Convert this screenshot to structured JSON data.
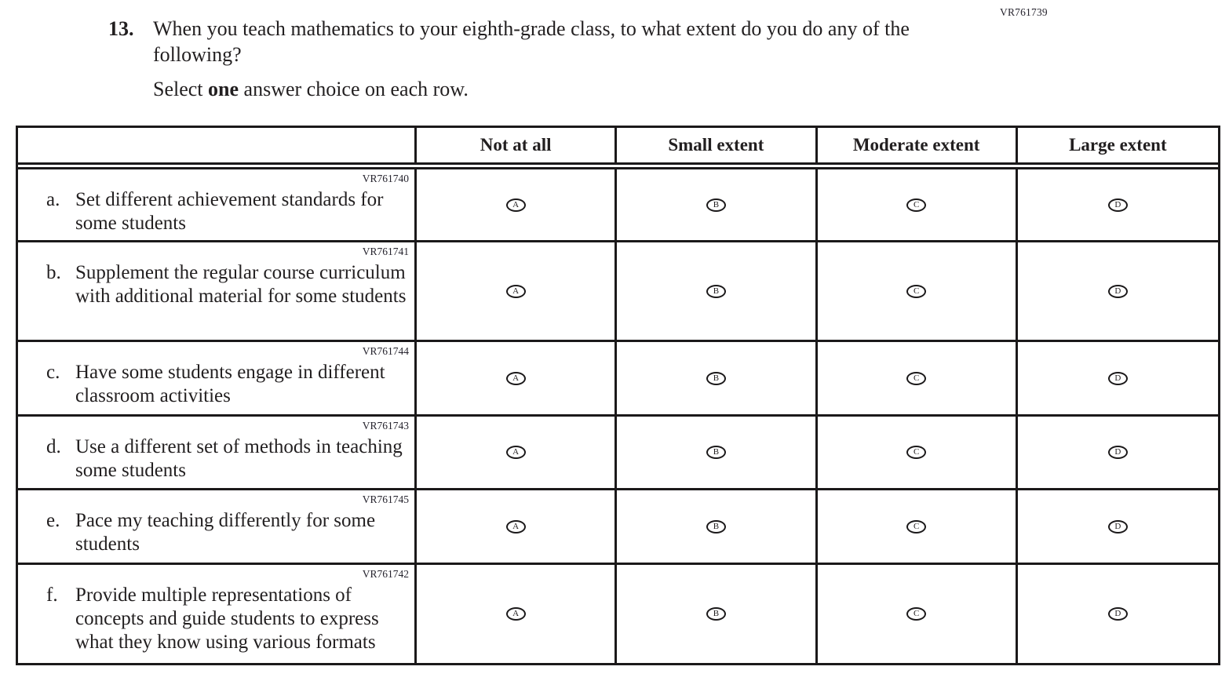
{
  "page": {
    "code_top_right": "VR761739",
    "question_number": "13.",
    "question_text": "When you teach mathematics to your eighth-grade class, to what extent do you do any of the following?",
    "instruction_prefix": "Select ",
    "instruction_bold": "one",
    "instruction_suffix": " answer choice on each row."
  },
  "table": {
    "columns": [
      "Not at all",
      "Small extent",
      "Moderate extent",
      "Large extent"
    ],
    "option_letters": [
      "A",
      "B",
      "C",
      "D"
    ],
    "rows": [
      {
        "code": "VR761740",
        "letter": "a.",
        "text": "Set different achievement standards for some students"
      },
      {
        "code": "VR761741",
        "letter": "b.",
        "text": "Supplement the regular course curriculum with additional material for some students"
      },
      {
        "code": "VR761744",
        "letter": "c.",
        "text": "Have some students engage in different classroom activities"
      },
      {
        "code": "VR761743",
        "letter": "d.",
        "text": "Use a different set of methods in teaching some students"
      },
      {
        "code": "VR761745",
        "letter": "e.",
        "text": "Pace my teaching differently for some students"
      },
      {
        "code": "VR761742",
        "letter": "f.",
        "text": "Provide multiple representations of concepts and guide students to express what they know using various formats"
      }
    ]
  },
  "colors": {
    "text": "#221f20",
    "border": "#1b191a",
    "background": "#ffffff"
  }
}
